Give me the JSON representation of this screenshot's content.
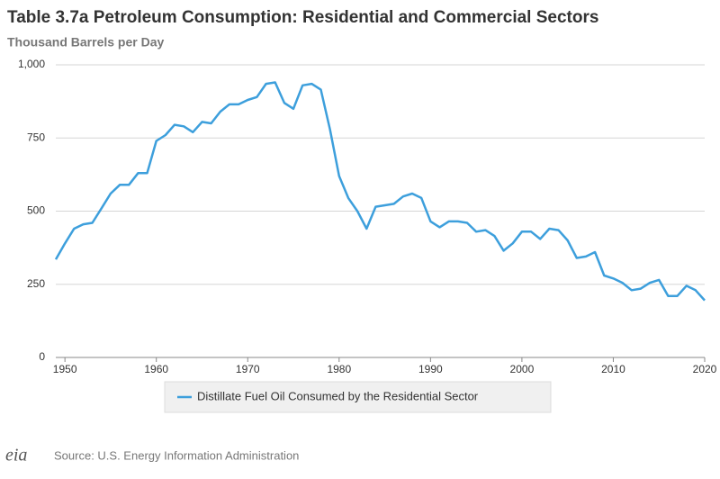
{
  "chart_data": {
    "type": "line",
    "title": "Table 3.7a Petroleum Consumption: Residential and Commercial Sectors",
    "subtitle": "Thousand Barrels per Day",
    "x": [
      1949,
      1950,
      1951,
      1952,
      1953,
      1954,
      1955,
      1956,
      1957,
      1958,
      1959,
      1960,
      1961,
      1962,
      1963,
      1964,
      1965,
      1966,
      1967,
      1968,
      1969,
      1970,
      1971,
      1972,
      1973,
      1974,
      1975,
      1976,
      1977,
      1978,
      1979,
      1980,
      1981,
      1982,
      1983,
      1984,
      1985,
      1986,
      1987,
      1988,
      1989,
      1990,
      1991,
      1992,
      1993,
      1994,
      1995,
      1996,
      1997,
      1998,
      1999,
      2000,
      2001,
      2002,
      2003,
      2004,
      2005,
      2006,
      2007,
      2008,
      2009,
      2010,
      2011,
      2012,
      2013,
      2014,
      2015,
      2016,
      2017,
      2018,
      2019,
      2020
    ],
    "series": [
      {
        "name": "Distillate Fuel Oil Consumed by the Residential Sector",
        "color": "#3d9fdc",
        "values": [
          335,
          390,
          440,
          455,
          460,
          510,
          560,
          590,
          590,
          630,
          630,
          740,
          760,
          795,
          790,
          770,
          805,
          800,
          840,
          865,
          865,
          880,
          890,
          935,
          940,
          870,
          850,
          930,
          935,
          915,
          780,
          620,
          545,
          500,
          440,
          515,
          520,
          525,
          550,
          560,
          545,
          465,
          445,
          465,
          465,
          460,
          430,
          435,
          415,
          365,
          390,
          430,
          430,
          405,
          440,
          435,
          400,
          340,
          345,
          360,
          280,
          270,
          255,
          230,
          235,
          255,
          265,
          210,
          210,
          245,
          230,
          195
        ]
      }
    ],
    "xlim": [
      1949,
      2020
    ],
    "xticks": [
      1950,
      1960,
      1970,
      1980,
      1990,
      2000,
      2010,
      2020
    ],
    "ylim": [
      0,
      1000
    ],
    "yticks": [
      0,
      250,
      500,
      750,
      {
        "value": 1000,
        "label": "1,000"
      }
    ],
    "grid": true,
    "source": "Source: U.S. Energy Information Administration",
    "logo": "eia"
  }
}
